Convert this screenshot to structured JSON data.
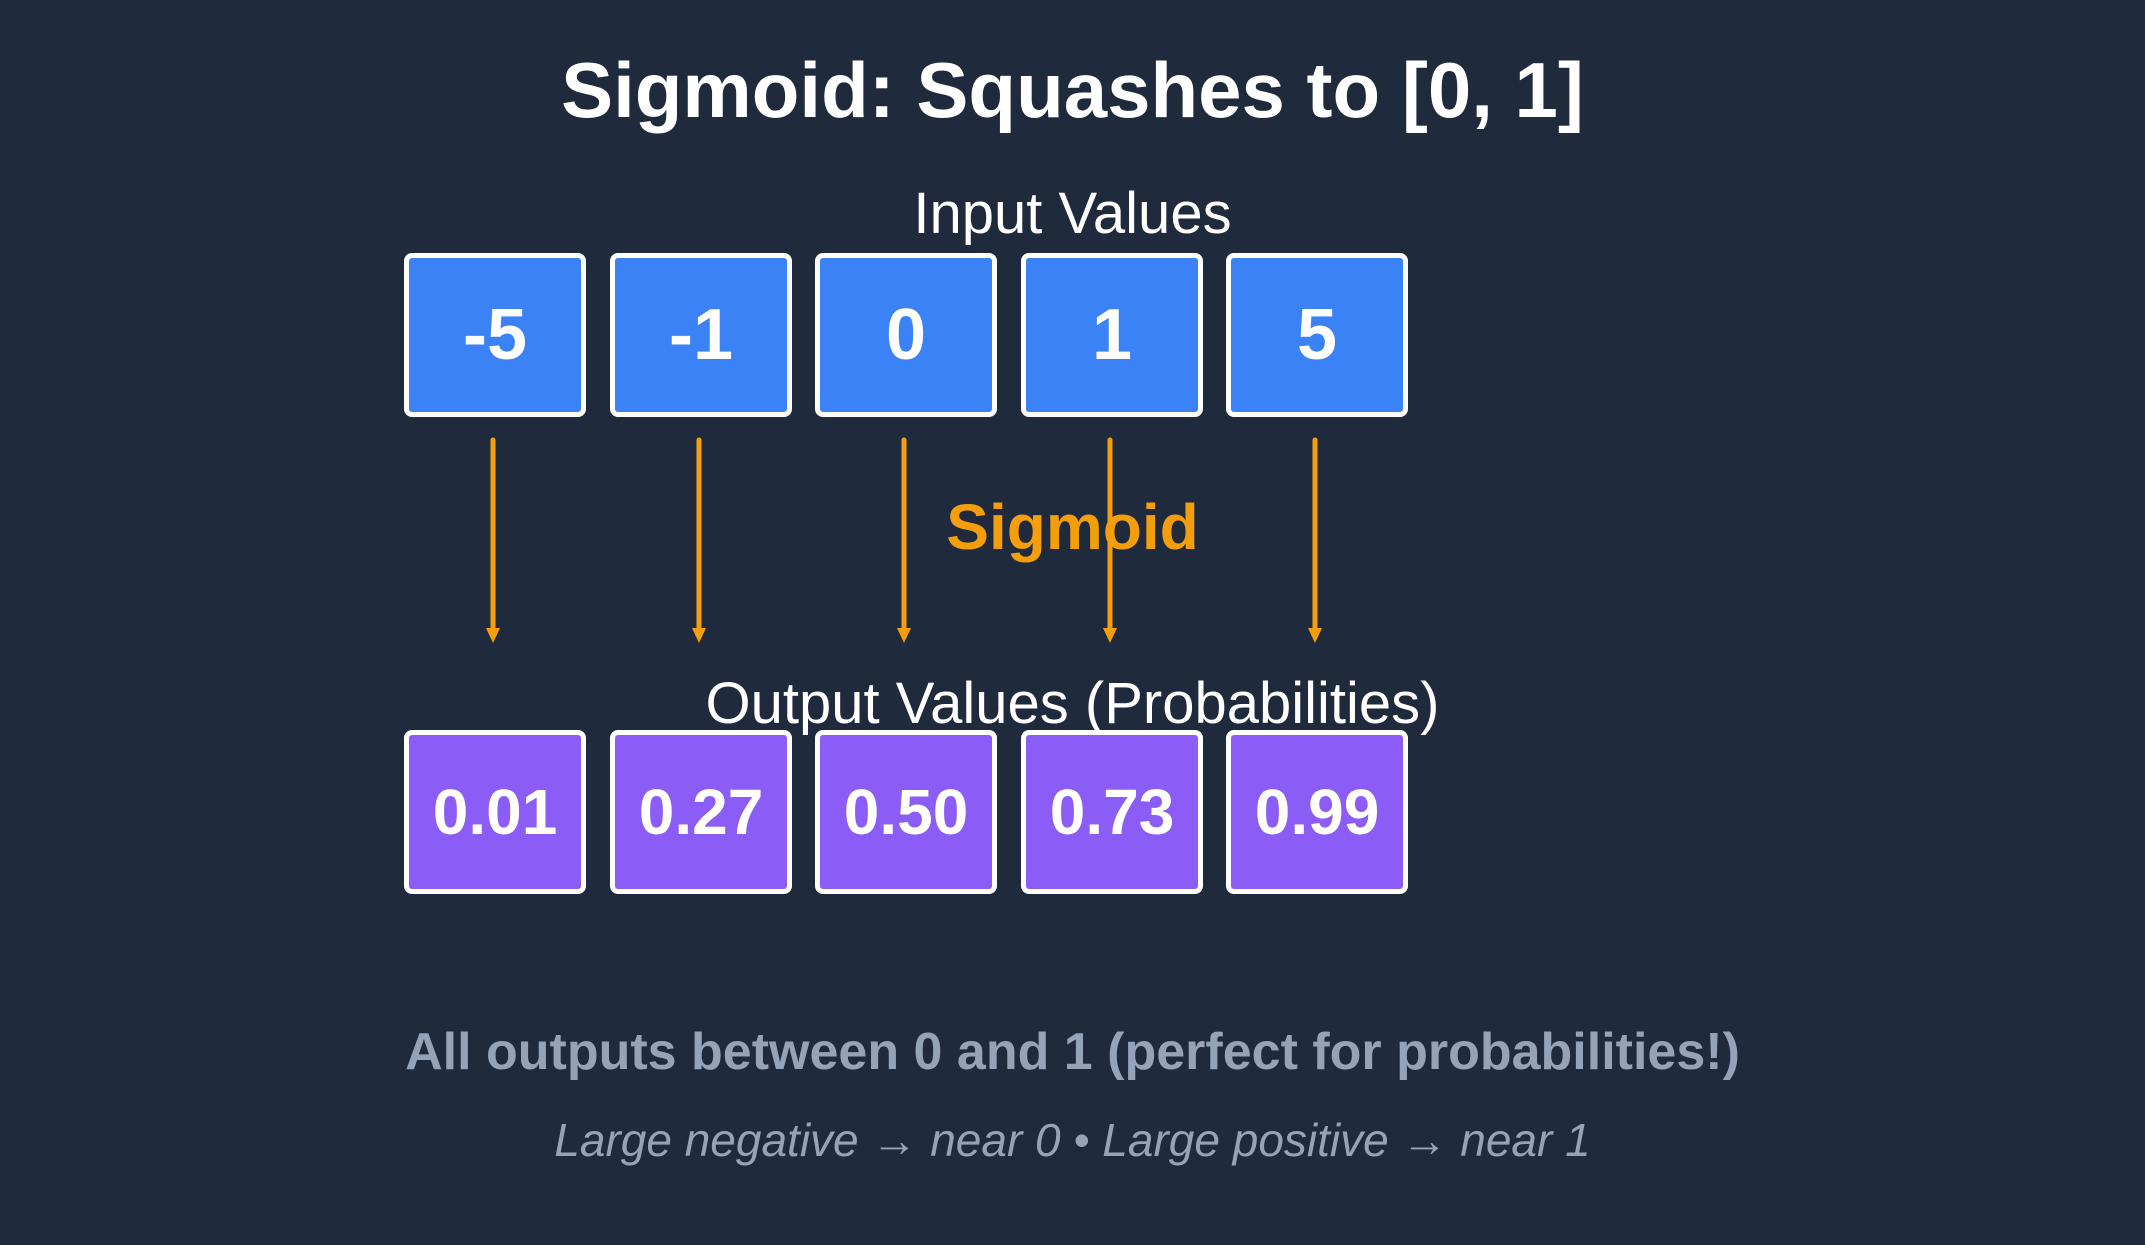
{
  "title": "Sigmoid: Squashes to [0, 1]",
  "input_label": "Input Values",
  "output_label": "Output Values (Probabilities)",
  "operation_label": "Sigmoid",
  "inputs": [
    "-5",
    "-1",
    "0",
    "1",
    "5"
  ],
  "outputs": [
    "0.01",
    "0.27",
    "0.50",
    "0.73",
    "0.99"
  ],
  "summary": "All outputs between 0 and 1 (perfect for probabilities!)",
  "note": "Large negative → near 0  •  Large positive → near 1",
  "colors": {
    "background": "#1f2a3c",
    "input_box": "#3b82f6",
    "output_box": "#8b5cf6",
    "arrow": "#f59e0b",
    "muted_text": "#94a3b8"
  }
}
